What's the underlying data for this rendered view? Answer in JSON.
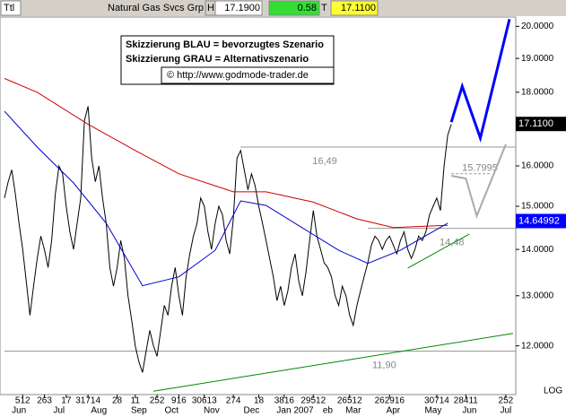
{
  "header": {
    "symbol": "Ttl",
    "name": "Natural Gas Svcs Grp",
    "high_label": "H",
    "high": "17.1900",
    "change": "0.58",
    "last_label": "T",
    "last": "17.1100"
  },
  "chart_data": {
    "type": "line",
    "log_scale": true,
    "annotations": [
      "Skizzierung BLAU = bevorzugtes Szenario",
      "Skizzierung GRAU = Alternativszenario",
      "© http://www.godmode-trader.de"
    ],
    "scale_label": "LOG",
    "ylim": [
      11.1,
      20.3
    ],
    "yticks": [
      {
        "value": 20,
        "label": "20.0000"
      },
      {
        "value": 19,
        "label": "19.0000"
      },
      {
        "value": 18,
        "label": "18.0000"
      },
      {
        "value": 17,
        "label": "17.0000"
      },
      {
        "value": 16,
        "label": "16.0000"
      },
      {
        "value": 15,
        "label": "15.0000"
      },
      {
        "value": 14,
        "label": "14.0000"
      },
      {
        "value": 13,
        "label": "13.0000"
      },
      {
        "value": 12,
        "label": "12.0000"
      }
    ],
    "xticks": [
      {
        "value": 4,
        "label": "Jun"
      },
      {
        "value": 15,
        "label": "Jul"
      },
      {
        "value": 26,
        "label": "Aug"
      },
      {
        "value": 37,
        "label": "Sep"
      },
      {
        "value": 46,
        "label": "Oct"
      },
      {
        "value": 57,
        "label": "Nov"
      },
      {
        "value": 68,
        "label": "Dec"
      },
      {
        "value": 80,
        "label": "Jan 2007"
      },
      {
        "value": 89,
        "label": "eb"
      },
      {
        "value": 96,
        "label": "Mar"
      },
      {
        "value": 107,
        "label": "Apr"
      },
      {
        "value": 118,
        "label": "May"
      },
      {
        "value": 128,
        "label": "Jun"
      },
      {
        "value": 138,
        "label": "Jul"
      }
    ],
    "xticks_minor": [
      {
        "value": 5,
        "label": "512"
      },
      {
        "value": 11,
        "label": "263"
      },
      {
        "value": 17,
        "label": "17"
      },
      {
        "value": 23,
        "label": "31714"
      },
      {
        "value": 31,
        "label": "28"
      },
      {
        "value": 36,
        "label": "11"
      },
      {
        "value": 42,
        "label": "252"
      },
      {
        "value": 48,
        "label": "916"
      },
      {
        "value": 55,
        "label": "30613"
      },
      {
        "value": 63,
        "label": "274"
      },
      {
        "value": 70,
        "label": "18"
      },
      {
        "value": 77,
        "label": "3816"
      },
      {
        "value": 85,
        "label": "29512"
      },
      {
        "value": 95,
        "label": "26512"
      },
      {
        "value": 106,
        "label": "262916"
      },
      {
        "value": 119,
        "label": "30714"
      },
      {
        "value": 127,
        "label": "28411"
      },
      {
        "value": 138,
        "label": "252"
      }
    ],
    "categories": [
      null,
      null,
      null,
      null,
      null,
      null,
      null,
      null,
      null,
      null,
      null,
      null,
      null,
      null,
      null,
      null,
      null,
      null,
      null,
      null,
      null,
      null,
      null,
      null,
      null,
      null,
      null,
      null,
      null,
      null,
      null,
      null,
      null,
      null,
      null,
      null,
      null,
      null,
      null,
      null,
      null,
      null,
      null,
      null,
      null,
      null,
      null,
      null,
      null,
      null,
      null,
      null,
      null,
      null,
      null,
      null,
      null,
      null,
      null,
      null,
      null,
      null,
      null,
      null,
      null,
      null,
      null,
      null,
      null,
      null,
      null,
      null,
      null,
      null,
      null,
      null,
      null,
      null,
      null,
      null,
      null,
      null,
      null,
      null,
      null,
      null,
      null,
      null,
      null,
      null,
      null,
      null,
      null,
      null,
      null,
      null,
      null,
      null,
      null,
      null,
      null,
      null,
      null,
      null,
      null,
      null,
      null,
      null,
      null,
      null,
      null,
      null,
      null,
      null,
      null,
      null,
      null,
      null,
      null,
      null,
      null,
      null,
      null,
      null,
      null,
      null,
      null,
      null,
      null,
      null,
      null,
      null,
      null,
      null,
      null,
      null,
      null,
      null,
      null,
      null,
      null
    ],
    "series": [
      {
        "color": "#000000",
        "values": [
          15.2,
          15.6,
          15.9,
          15.3,
          14.6,
          14.0,
          13.3,
          12.6,
          13.2,
          13.8,
          14.3,
          14.0,
          13.6,
          14.2,
          15.3,
          16.0,
          15.8,
          15.0,
          14.4,
          14.0,
          14.6,
          15.2,
          17.2,
          17.6,
          16.2,
          15.6,
          16.0,
          15.2,
          14.6,
          13.6,
          13.2,
          13.6,
          14.2,
          13.8,
          13.0,
          12.5,
          12.0,
          11.7,
          11.5,
          11.9,
          12.3,
          12.0,
          11.8,
          12.3,
          12.8,
          12.6,
          13.2,
          13.6,
          13.0,
          12.6,
          13.4,
          13.9,
          14.3,
          14.6,
          15.2,
          15.0,
          14.4,
          14.0,
          14.6,
          15.0,
          14.8,
          14.2,
          13.9,
          14.7,
          16.2,
          16.4,
          15.9,
          15.4,
          15.8,
          15.5,
          15.0,
          14.6,
          14.2,
          13.8,
          13.4,
          12.9,
          13.2,
          12.8,
          13.1,
          13.6,
          13.9,
          13.3,
          13.0,
          13.5,
          14.2,
          14.9,
          14.3,
          14.0,
          13.7,
          13.6,
          13.4,
          13.0,
          12.8,
          13.2,
          13.0,
          12.6,
          12.4,
          12.8,
          13.1,
          13.4,
          13.7,
          14.1,
          14.3,
          14.2,
          14.0,
          14.2,
          14.3,
          14.1,
          13.9,
          14.2,
          14.4,
          14.0,
          13.8,
          14.0,
          14.3,
          14.2,
          14.4,
          14.8,
          15.0,
          15.2,
          14.9,
          16.0,
          16.8,
          17.1,
          null,
          null,
          null,
          null,
          null,
          null,
          null,
          null,
          null,
          null,
          null,
          null,
          null,
          null,
          null,
          null,
          null
        ]
      },
      {
        "color": "#cc0000",
        "x": [
          0,
          9,
          23,
          36,
          48,
          63,
          72,
          85,
          97,
          107,
          122
        ],
        "values": [
          18.4,
          18.0,
          17.1,
          16.4,
          15.8,
          15.35,
          15.35,
          15.1,
          14.7,
          14.5,
          14.55
        ]
      },
      {
        "color": "#0000cc",
        "x": [
          0,
          9,
          19,
          28,
          38,
          48,
          58,
          65,
          72,
          82,
          92,
          100,
          109,
          122
        ],
        "values": [
          17.46,
          16.49,
          15.57,
          14.6,
          13.21,
          13.4,
          13.98,
          15.13,
          15.02,
          14.49,
          13.98,
          13.69,
          13.98,
          14.6
        ]
      },
      {
        "color": "#0000ff",
        "width": 3,
        "x": [
          123,
          126,
          131,
          139
        ],
        "values": [
          17.16,
          18.17,
          16.73,
          20.23
        ]
      },
      {
        "color": "#aaaaaa",
        "width": 2,
        "x": [
          123,
          127,
          130,
          138
        ],
        "values": [
          15.75,
          15.68,
          14.77,
          16.56
        ]
      },
      {
        "color": "#008800",
        "x": [
          41,
          140
        ],
        "values": [
          11.16,
          12.24
        ]
      },
      {
        "color": "#008800",
        "x": [
          111,
          128
        ],
        "values": [
          13.59,
          14.35
        ]
      }
    ],
    "levels": [
      {
        "value": 16.49,
        "label": "16,49",
        "from": 65
      },
      {
        "value": 14.48,
        "label": "14,48",
        "from": 100
      },
      {
        "value": 11.9,
        "label": "11,90",
        "from": 0
      },
      {
        "value": 15.7995,
        "label": "15.7995",
        "from": 123
      }
    ],
    "price_labels": [
      {
        "value": 17.11,
        "label": "17.1100",
        "color": "#000000"
      },
      14.64992
    ]
  }
}
